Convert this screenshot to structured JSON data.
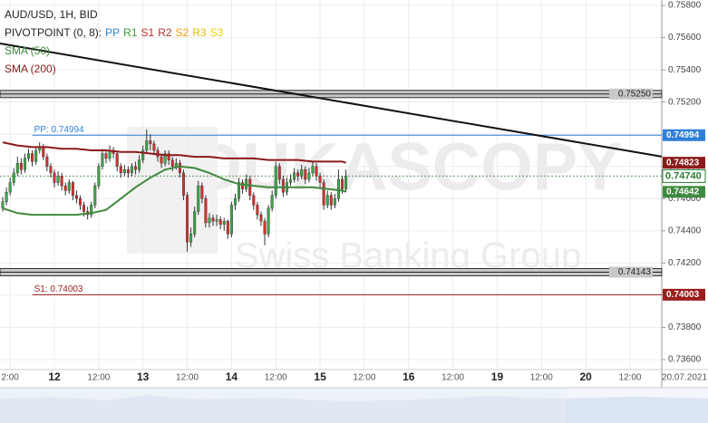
{
  "chart_data": {
    "type": "candlestick",
    "title": "AUD/USD, 1H, BID",
    "pivot_legend": {
      "prefix": "PIVOTPOINT (0, 8):",
      "items": [
        {
          "name": "PP",
          "color": "#2f7fd8"
        },
        {
          "name": "R1",
          "color": "#3a9a3a"
        },
        {
          "name": "S1",
          "color": "#c62828"
        },
        {
          "name": "R2",
          "color": "#b03030"
        },
        {
          "name": "S2",
          "color": "#f39c12"
        },
        {
          "name": "R3",
          "color": "#e6b800"
        },
        {
          "name": "S3",
          "color": "#f0d000"
        }
      ]
    },
    "watermark": [
      "DUKASCOPY",
      "Swiss Banking Group"
    ],
    "xlim": [
      -2.74,
      176.6
    ],
    "ylim": [
      0.73538,
      0.75834
    ],
    "xticks": [
      {
        "value": 0,
        "label": "2:00"
      },
      {
        "value": 12,
        "label": "12"
      },
      {
        "value": 24,
        "label": "12:00"
      },
      {
        "value": 36,
        "label": "13"
      },
      {
        "value": 48,
        "label": "12:00"
      },
      {
        "value": 60,
        "label": "14"
      },
      {
        "value": 72,
        "label": "12:00"
      },
      {
        "value": 84,
        "label": "15"
      },
      {
        "value": 96,
        "label": "12:00"
      },
      {
        "value": 108,
        "label": "16"
      },
      {
        "value": 120,
        "label": "12:00"
      },
      {
        "value": 132,
        "label": "19"
      },
      {
        "value": 144,
        "label": "12:00"
      },
      {
        "value": 156,
        "label": "20"
      },
      {
        "value": 168,
        "label": "12:00"
      }
    ],
    "x_axis_date": "20.07.2021",
    "yticks": [
      {
        "value": 0.758,
        "label": "0.75800"
      },
      {
        "value": 0.756,
        "label": "0.75600"
      },
      {
        "value": 0.754,
        "label": "0.75400"
      },
      {
        "value": 0.752,
        "label": "0.75200"
      },
      {
        "value": 0.75,
        "label": "0.75000"
      },
      {
        "value": 0.748,
        "label": "0.74800"
      },
      {
        "value": 0.746,
        "label": "0.74600"
      },
      {
        "value": 0.744,
        "label": "0.74400"
      },
      {
        "value": 0.742,
        "label": "0.74200"
      },
      {
        "value": 0.74,
        "label": "0.74000"
      },
      {
        "value": 0.738,
        "label": "0.73800"
      },
      {
        "value": 0.736,
        "label": "0.73600"
      }
    ],
    "grid": true,
    "candles": {
      "up_color": "#3aa845",
      "down_color": "#d3302f",
      "x": [
        -2,
        -1,
        0,
        1,
        2,
        3,
        4,
        5,
        6,
        7,
        8,
        9,
        10,
        11,
        12,
        13,
        14,
        15,
        16,
        17,
        18,
        19,
        20,
        21,
        22,
        23,
        24,
        25,
        26,
        27,
        28,
        29,
        30,
        31,
        32,
        33,
        34,
        35,
        36,
        37,
        38,
        39,
        40,
        41,
        42,
        43,
        44,
        45,
        46,
        47,
        48,
        49,
        50,
        51,
        52,
        53,
        54,
        55,
        56,
        57,
        58,
        59,
        60,
        61,
        62,
        63,
        64,
        65,
        66,
        67,
        68,
        69,
        70,
        71,
        72,
        73,
        74,
        75,
        76,
        77,
        78,
        79,
        80,
        81,
        82,
        83,
        84,
        85,
        86,
        87,
        88,
        89,
        90,
        91
      ],
      "open": [
        0.7454,
        0.7458,
        0.7464,
        0.747,
        0.7476,
        0.7482,
        0.7478,
        0.7485,
        0.7488,
        0.7483,
        0.749,
        0.7492,
        0.7486,
        0.748,
        0.7476,
        0.747,
        0.7474,
        0.7468,
        0.7465,
        0.747,
        0.7462,
        0.746,
        0.7456,
        0.7452,
        0.745,
        0.7456,
        0.7468,
        0.748,
        0.7488,
        0.7485,
        0.749,
        0.7488,
        0.748,
        0.7476,
        0.7478,
        0.7476,
        0.748,
        0.7478,
        0.7484,
        0.749,
        0.7496,
        0.7494,
        0.749,
        0.7486,
        0.7482,
        0.7488,
        0.7484,
        0.748,
        0.7482,
        0.7476,
        0.7462,
        0.7433,
        0.7438,
        0.7452,
        0.7468,
        0.746,
        0.7445,
        0.7448,
        0.7446,
        0.7447,
        0.7444,
        0.7446,
        0.7438,
        0.7456,
        0.746,
        0.747,
        0.7466,
        0.7472,
        0.7462,
        0.7456,
        0.745,
        0.7446,
        0.7438,
        0.7454,
        0.7462,
        0.748,
        0.7472,
        0.7464,
        0.747,
        0.7472,
        0.7476,
        0.7474,
        0.7478,
        0.7472,
        0.7476,
        0.748,
        0.7474,
        0.747,
        0.7456,
        0.7462,
        0.7456,
        0.746,
        0.7472,
        0.7466
      ],
      "high": [
        0.7461,
        0.7467,
        0.7473,
        0.7479,
        0.7486,
        0.7485,
        0.7488,
        0.7491,
        0.749,
        0.7492,
        0.7495,
        0.7494,
        0.7488,
        0.7482,
        0.7478,
        0.7477,
        0.7476,
        0.747,
        0.7472,
        0.7471,
        0.7465,
        0.7462,
        0.7458,
        0.7455,
        0.7458,
        0.747,
        0.7482,
        0.7491,
        0.749,
        0.7493,
        0.7492,
        0.7489,
        0.7482,
        0.7481,
        0.748,
        0.7482,
        0.7483,
        0.7487,
        0.7493,
        0.7503,
        0.75,
        0.7496,
        0.7492,
        0.7488,
        0.749,
        0.749,
        0.7486,
        0.7485,
        0.7484,
        0.7478,
        0.7464,
        0.7442,
        0.7455,
        0.7471,
        0.747,
        0.7462,
        0.7451,
        0.745,
        0.745,
        0.7449,
        0.7448,
        0.7447,
        0.7458,
        0.7463,
        0.7473,
        0.7472,
        0.7475,
        0.7474,
        0.7464,
        0.7458,
        0.7452,
        0.7448,
        0.7456,
        0.7465,
        0.7483,
        0.7482,
        0.7474,
        0.7473,
        0.7475,
        0.7479,
        0.7478,
        0.7481,
        0.748,
        0.7479,
        0.7483,
        0.7482,
        0.7476,
        0.7472,
        0.7465,
        0.7464,
        0.7463,
        0.7478,
        0.7474,
        0.7478
      ],
      "low": [
        0.7452,
        0.7456,
        0.7462,
        0.7468,
        0.7474,
        0.7475,
        0.7476,
        0.7483,
        0.748,
        0.7481,
        0.7488,
        0.7484,
        0.7477,
        0.7473,
        0.7467,
        0.7468,
        0.7465,
        0.7462,
        0.7463,
        0.7459,
        0.7457,
        0.7453,
        0.7449,
        0.7447,
        0.7448,
        0.7454,
        0.7466,
        0.7478,
        0.7482,
        0.7483,
        0.7485,
        0.7477,
        0.7473,
        0.7474,
        0.7473,
        0.7474,
        0.7475,
        0.7476,
        0.7482,
        0.7488,
        0.749,
        0.7487,
        0.7483,
        0.7479,
        0.748,
        0.7481,
        0.7477,
        0.7478,
        0.7473,
        0.7459,
        0.7427,
        0.743,
        0.7436,
        0.745,
        0.7457,
        0.7442,
        0.7442,
        0.7443,
        0.7443,
        0.7441,
        0.744,
        0.7435,
        0.7436,
        0.7453,
        0.7458,
        0.7463,
        0.7464,
        0.7459,
        0.7453,
        0.7447,
        0.7443,
        0.7431,
        0.7436,
        0.7452,
        0.746,
        0.7469,
        0.7461,
        0.7462,
        0.7468,
        0.747,
        0.7471,
        0.7472,
        0.7469,
        0.747,
        0.7474,
        0.7471,
        0.7467,
        0.7453,
        0.7454,
        0.7453,
        0.7454,
        0.7458,
        0.7463,
        0.7464
      ],
      "close": [
        0.7458,
        0.7464,
        0.747,
        0.7476,
        0.7482,
        0.7478,
        0.7485,
        0.7488,
        0.7483,
        0.749,
        0.7492,
        0.7486,
        0.748,
        0.7476,
        0.747,
        0.7474,
        0.7468,
        0.7465,
        0.747,
        0.7462,
        0.746,
        0.7456,
        0.7452,
        0.745,
        0.7456,
        0.7468,
        0.748,
        0.7488,
        0.7485,
        0.749,
        0.7488,
        0.748,
        0.7476,
        0.7478,
        0.7476,
        0.748,
        0.7478,
        0.7484,
        0.749,
        0.7496,
        0.7494,
        0.749,
        0.7486,
        0.7482,
        0.7488,
        0.7484,
        0.748,
        0.7482,
        0.7476,
        0.7462,
        0.7433,
        0.7438,
        0.7452,
        0.7468,
        0.746,
        0.7445,
        0.7448,
        0.7446,
        0.7447,
        0.7444,
        0.7446,
        0.7438,
        0.7456,
        0.746,
        0.747,
        0.7466,
        0.7472,
        0.7462,
        0.7456,
        0.745,
        0.7446,
        0.7438,
        0.7454,
        0.7462,
        0.748,
        0.7472,
        0.7464,
        0.747,
        0.7472,
        0.7476,
        0.7474,
        0.7478,
        0.7472,
        0.7476,
        0.748,
        0.7474,
        0.747,
        0.7456,
        0.7462,
        0.7456,
        0.746,
        0.7472,
        0.7466,
        0.7474
      ]
    },
    "series": [
      {
        "name": "SMA (50)",
        "color": "#3f8a3f",
        "x": [
          -2,
          2,
          6,
          10,
          14,
          18,
          22,
          26,
          30,
          34,
          38,
          42,
          46,
          50,
          54,
          58,
          62,
          66,
          70,
          74,
          78,
          82,
          86,
          90,
          91
        ],
        "values": [
          0.7454,
          0.7451,
          0.745,
          0.745,
          0.745,
          0.745,
          0.7451,
          0.7453,
          0.746,
          0.7467,
          0.7473,
          0.7478,
          0.748,
          0.7479,
          0.7476,
          0.7472,
          0.7469,
          0.7468,
          0.7467,
          0.7467,
          0.7467,
          0.7467,
          0.7466,
          0.7465,
          0.74642
        ]
      },
      {
        "name": "SMA (200)",
        "color": "#8b1a1a",
        "x": [
          -2,
          2,
          6,
          10,
          14,
          18,
          22,
          26,
          30,
          34,
          38,
          42,
          46,
          50,
          54,
          58,
          62,
          66,
          70,
          74,
          78,
          82,
          86,
          90,
          91
        ],
        "values": [
          0.7495,
          0.7493,
          0.7492,
          0.7492,
          0.7491,
          0.7491,
          0.749,
          0.749,
          0.7489,
          0.7489,
          0.7488,
          0.7487,
          0.7487,
          0.7486,
          0.7486,
          0.7485,
          0.7485,
          0.7485,
          0.7484,
          0.7484,
          0.7484,
          0.7483,
          0.7483,
          0.7483,
          0.74823
        ]
      }
    ],
    "trend_line": {
      "x": [
        -2.74,
        176.6
      ],
      "values": [
        0.75564,
        0.74861
      ],
      "color": "#111111"
    },
    "pivot_lines": [
      {
        "label": "PP: 0.74994",
        "value": 0.74994,
        "color": "#2f7fd8",
        "start": 6
      },
      {
        "label": "S1: 0.74003",
        "value": 0.74003,
        "color": "#9c1c1c",
        "start": 6
      }
    ],
    "bands": [
      {
        "value": 0.7525,
        "label": "0.75250"
      },
      {
        "value": 0.74143,
        "label": "0.74143"
      }
    ],
    "current_price": {
      "value": 0.7474,
      "label": "0.74740",
      "color": "#2e7d32"
    },
    "price_tags": [
      {
        "value": 0.74994,
        "label": "0.74994",
        "color": "#2f7fd8"
      },
      {
        "value": 0.74823,
        "label": "0.74823",
        "color": "#8b1a1a"
      },
      {
        "value": 0.74642,
        "label": "0.74642",
        "color": "#3f8a3f"
      },
      {
        "value": 0.74003,
        "label": "0.74003",
        "color": "#9c1c1c"
      }
    ]
  }
}
